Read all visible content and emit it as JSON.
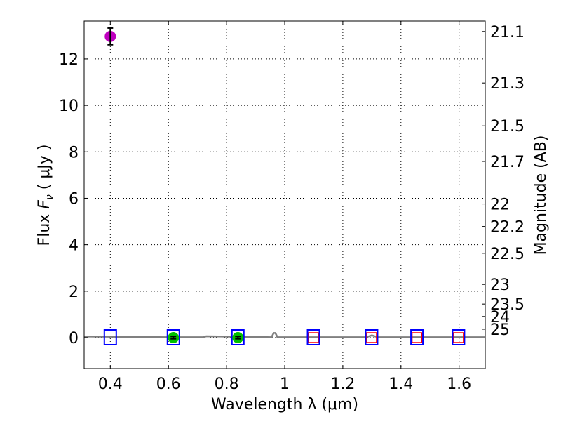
{
  "chart_data": {
    "type": "scatter",
    "xlabel": "Wavelength  λ (μm)",
    "ylabel": "Flux  F_ν  ( μJy )",
    "ylabel_parts": {
      "pre": "Flux  ",
      "var": "F",
      "sub": "ν",
      "post": "  ( μJy )"
    },
    "y2label": "Magnitude (AB)",
    "xlim": [
      0.31,
      1.69
    ],
    "ylim": [
      -1.33,
      13.63
    ],
    "grid": true,
    "xticks": [
      0.4,
      0.6,
      0.8,
      1.0,
      1.2,
      1.4,
      1.6
    ],
    "xtick_labels": [
      "0.4",
      "0.6",
      "0.8",
      "1",
      "1.2",
      "1.4",
      "1.6"
    ],
    "yticks": [
      0,
      2,
      4,
      6,
      8,
      10,
      12
    ],
    "ytick_labels": [
      "0",
      "2",
      "4",
      "6",
      "8",
      "10",
      "12"
    ],
    "mag_ticks": [
      21.1,
      21.3,
      21.5,
      21.7,
      22,
      22.2,
      22.5,
      23,
      23.5,
      24,
      25
    ],
    "mag_tick_labels": [
      "21.1",
      "21.3",
      "21.5",
      "21.7",
      "22",
      "22.2",
      "22.5",
      "23",
      "23.5",
      "24",
      "25"
    ],
    "mag_zeropoint": 23.9,
    "detections": [
      {
        "x": 0.4,
        "y": 12.97,
        "err": 0.36,
        "color": "#bf00bf"
      },
      {
        "x": 0.617,
        "y": 0.0,
        "err": 0.05,
        "color": "#00bf00"
      },
      {
        "x": 0.839,
        "y": 0.0,
        "err": 0.05,
        "color": "#00bf00"
      }
    ],
    "filter_boxes": [
      0.4,
      0.617,
      0.839,
      1.099,
      1.299,
      1.455,
      1.598
    ],
    "model_boxes": [
      1.099,
      1.299,
      1.455,
      1.598
    ],
    "spectrum": {
      "color": "#808080",
      "x": [
        0.31,
        0.6,
        0.72,
        0.73,
        0.955,
        0.962,
        0.968,
        0.975,
        1.2,
        1.28,
        1.3,
        1.32,
        1.69
      ],
      "y": [
        0.05,
        0.02,
        0.02,
        0.06,
        0.02,
        0.2,
        0.2,
        0.02,
        0.02,
        0.02,
        0.1,
        0.02,
        0.02
      ]
    },
    "colors": {
      "box": "#0000ff",
      "model": "#ff0000"
    }
  }
}
